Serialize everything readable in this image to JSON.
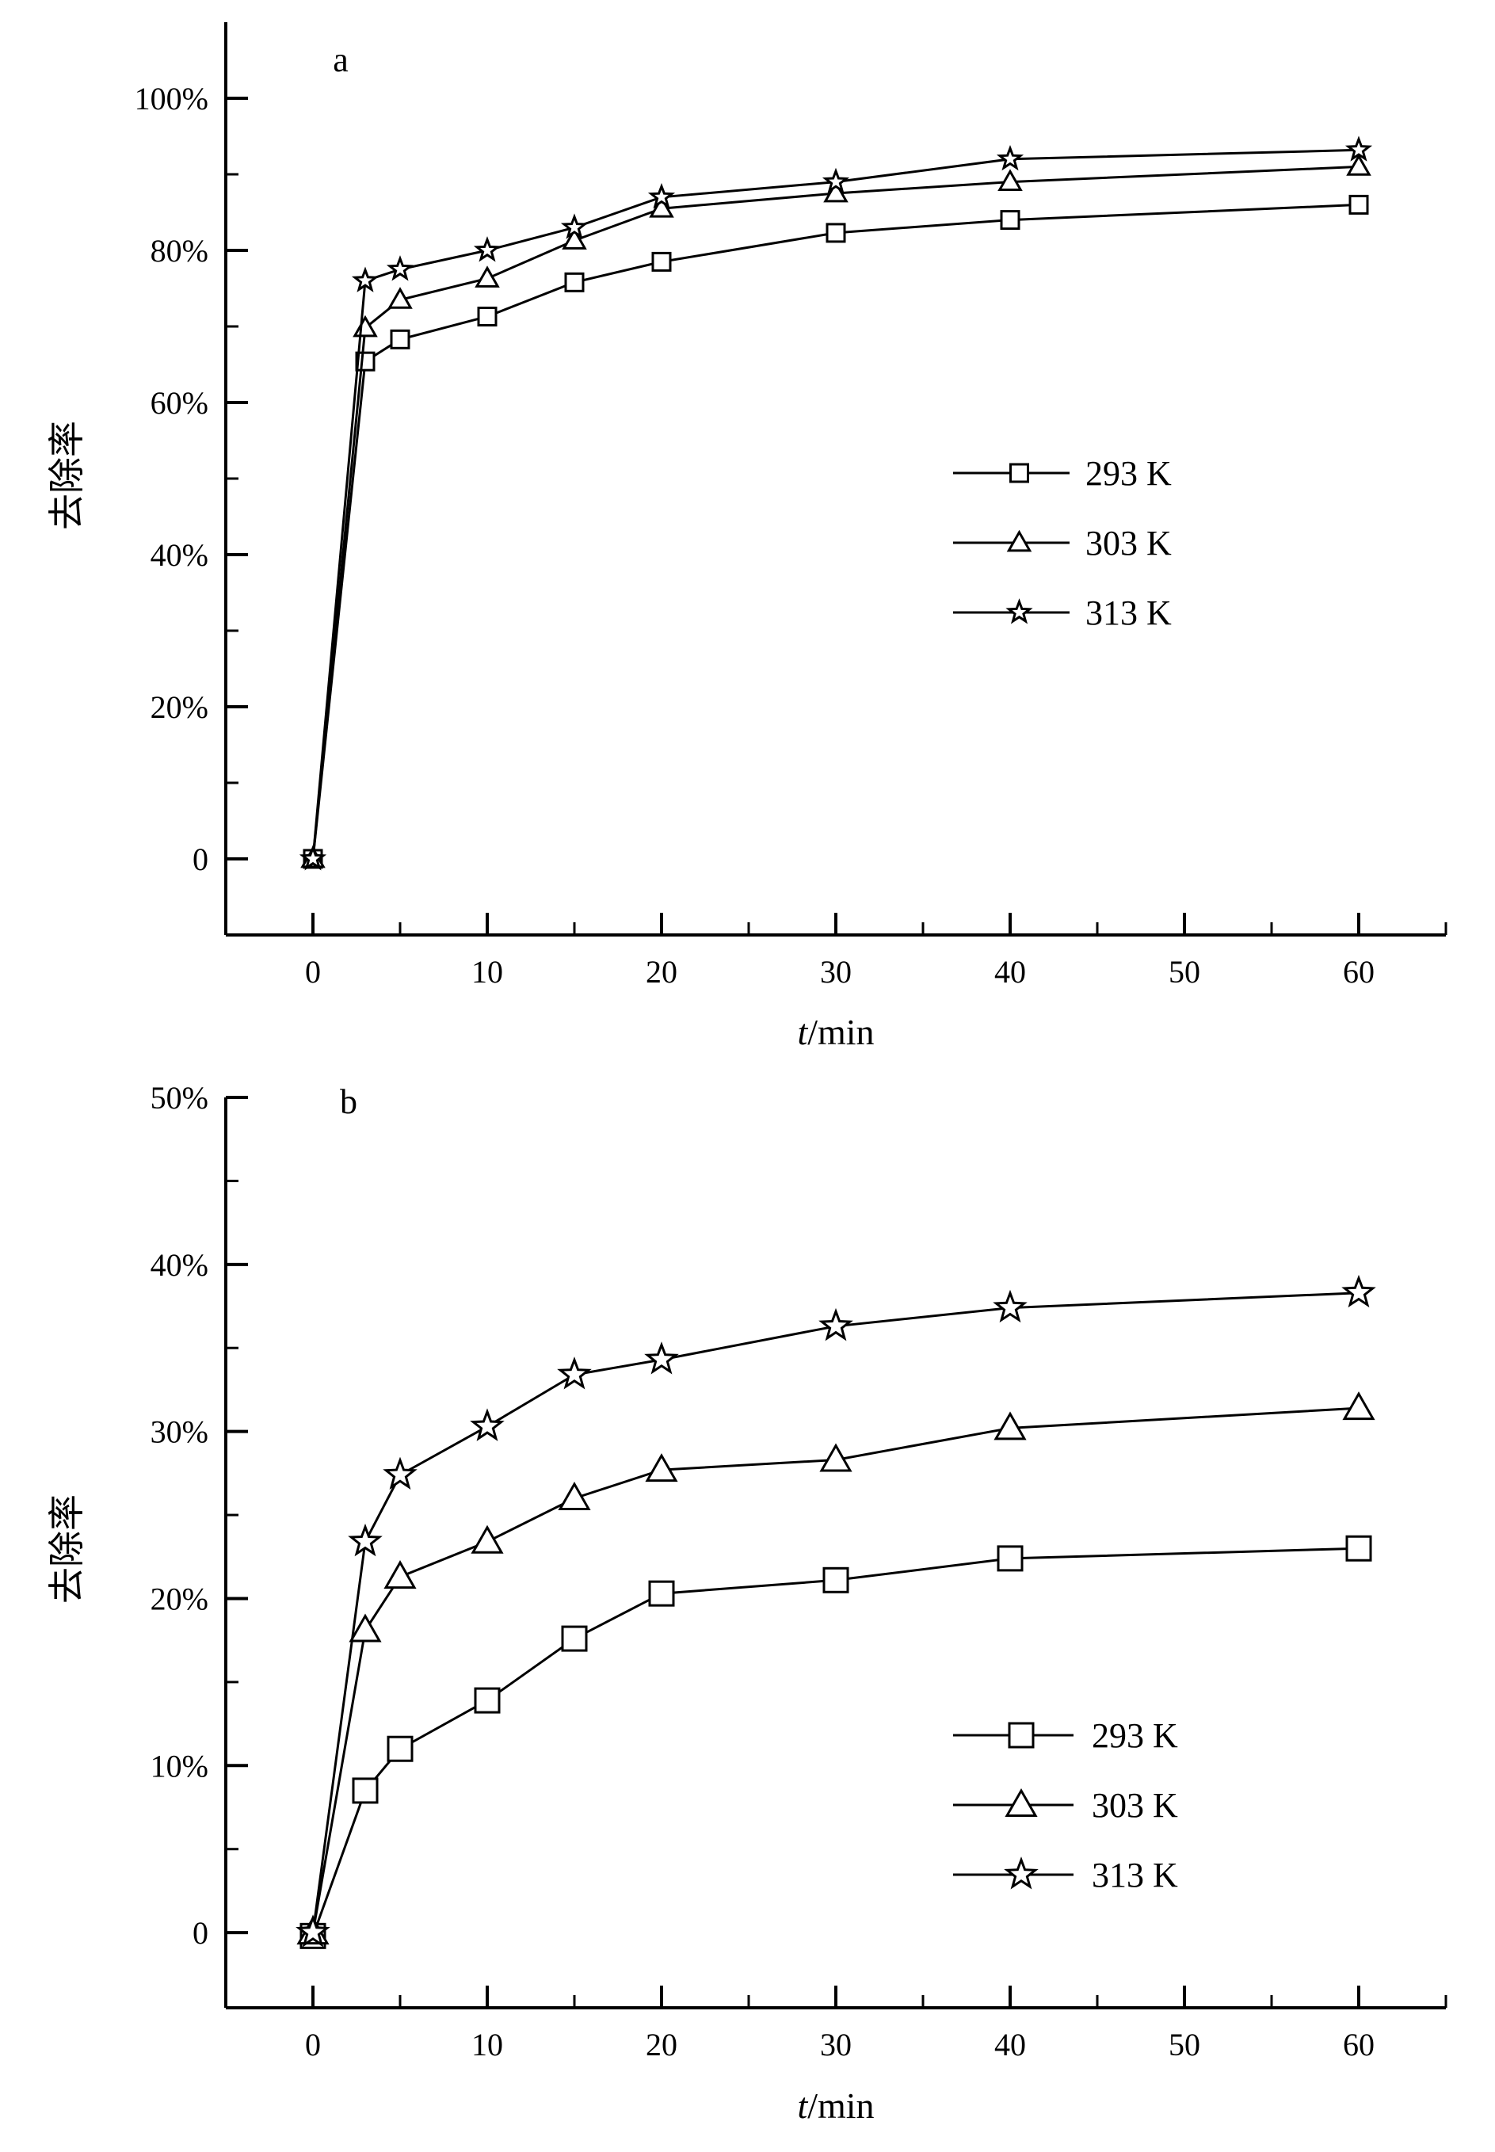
{
  "chart_data": [
    {
      "type": "line",
      "panel_label": "a",
      "xlabel": "t/min",
      "xlabel_italic_part": "t",
      "xlabel_rest": "/min",
      "ylabel": "去除率",
      "xlim": [
        -5,
        65
      ],
      "ylim": [
        -10,
        110
      ],
      "x_ticks": [
        0,
        10,
        20,
        30,
        40,
        50,
        60
      ],
      "x_tick_labels": [
        "0",
        "10",
        "20",
        "30",
        "40",
        "50",
        "60"
      ],
      "y_ticks": [
        0,
        20,
        40,
        60,
        80,
        100
      ],
      "y_tick_labels": [
        "0",
        "20%",
        "40%",
        "60%",
        "80%",
        "100%"
      ],
      "legend_position": "center-right",
      "x": [
        0,
        3,
        5,
        10,
        15,
        20,
        30,
        40,
        60
      ],
      "series": [
        {
          "name": "293 K",
          "marker": "square",
          "values": [
            0,
            65.4,
            68.3,
            71.3,
            75.8,
            78.5,
            82.3,
            84.0,
            86.0
          ]
        },
        {
          "name": "303 K",
          "marker": "triangle",
          "values": [
            0,
            69.8,
            73.5,
            76.3,
            81.3,
            85.5,
            87.5,
            89.0,
            91.0
          ]
        },
        {
          "name": "313 K",
          "marker": "star",
          "values": [
            0,
            76.0,
            77.5,
            80.0,
            83.0,
            87.0,
            89.0,
            92.0,
            93.2
          ]
        }
      ]
    },
    {
      "type": "line",
      "panel_label": "b",
      "xlabel": "t/min",
      "xlabel_italic_part": "t",
      "xlabel_rest": "/min",
      "ylabel": "去除率",
      "xlim": [
        -5,
        65
      ],
      "ylim": [
        -4.5,
        50
      ],
      "x_ticks": [
        0,
        10,
        20,
        30,
        40,
        50,
        60
      ],
      "x_tick_labels": [
        "0",
        "10",
        "20",
        "30",
        "40",
        "50",
        "60"
      ],
      "y_ticks": [
        0,
        10,
        20,
        30,
        40,
        50
      ],
      "y_tick_labels": [
        "0",
        "10%",
        "20%",
        "30%",
        "40%",
        "50%"
      ],
      "legend_position": "bottom-right",
      "x": [
        0,
        3,
        5,
        10,
        15,
        20,
        30,
        40,
        60
      ],
      "series": [
        {
          "name": "293 K",
          "marker": "square",
          "values": [
            -0.2,
            8.5,
            11.0,
            13.9,
            17.6,
            20.3,
            21.1,
            22.4,
            23.0
          ]
        },
        {
          "name": "303 K",
          "marker": "triangle",
          "values": [
            0,
            18.1,
            21.3,
            23.4,
            26.0,
            27.7,
            28.3,
            30.2,
            31.4
          ]
        },
        {
          "name": "313 K",
          "marker": "star",
          "values": [
            0,
            23.4,
            27.4,
            30.3,
            33.4,
            34.3,
            36.3,
            37.4,
            38.3
          ]
        }
      ]
    }
  ]
}
